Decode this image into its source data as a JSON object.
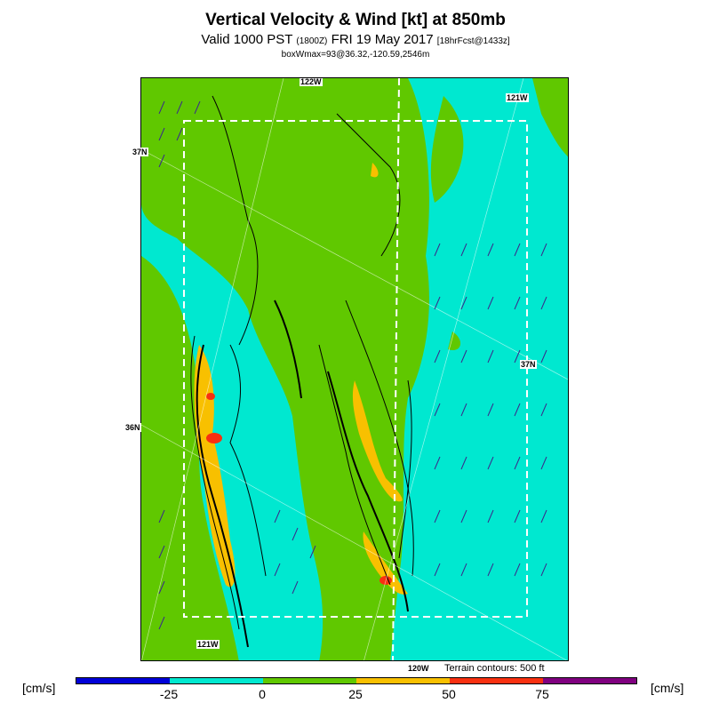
{
  "header": {
    "title": "Vertical Velocity & Wind [kt] at 850mb",
    "valid_prefix": "Valid 1000 PST",
    "valid_utc": "(1800Z)",
    "valid_date": "FRI 19 May 2017",
    "forecast": "[18hrFcst@1433z]",
    "box_max": "boxWmax=93@36.32,-120.59,2546m"
  },
  "map": {
    "lon_labels": [
      "122W",
      "121W",
      "121W",
      "120W"
    ],
    "lat_labels": [
      "37N",
      "37N",
      "36N"
    ],
    "terrain_note": "Terrain contours: 500 ft"
  },
  "legend": {
    "unit_left": "[cm/s]",
    "unit_right": "[cm/s]",
    "ticks": [
      "-25",
      "0",
      "25",
      "50",
      "75"
    ],
    "colors": [
      "#0000d8",
      "#00e8d0",
      "#60c800",
      "#f8c000",
      "#f83010",
      "#800080"
    ]
  }
}
